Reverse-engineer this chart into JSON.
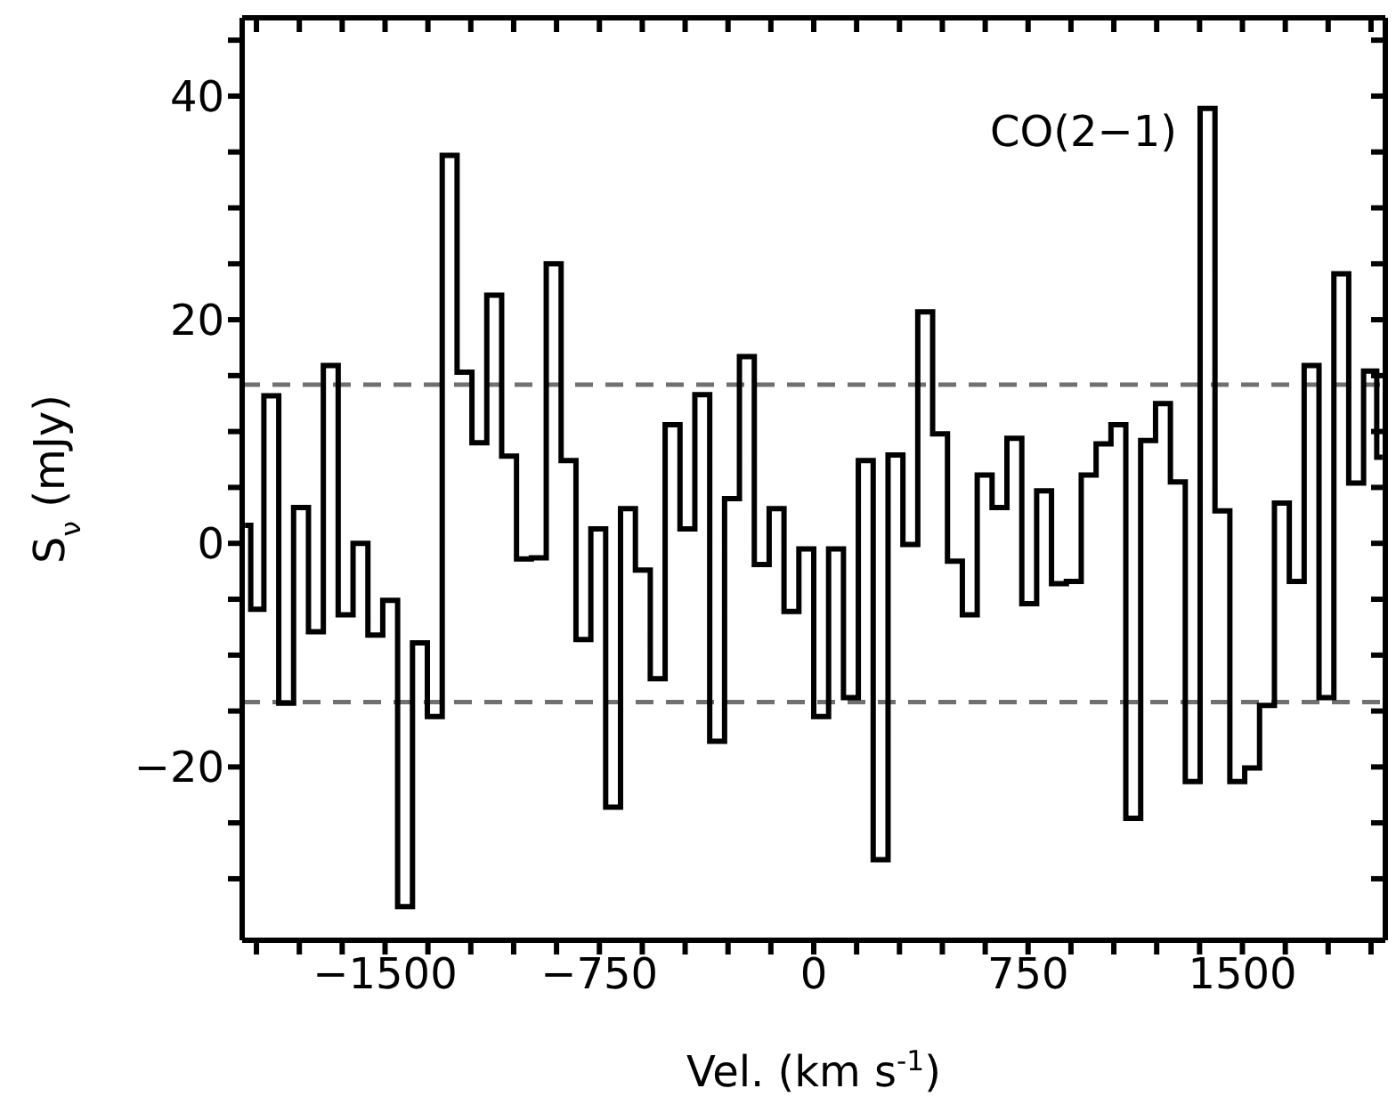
{
  "chart_data": {
    "type": "step",
    "xlabel": "Vel. (km s$^{-1}$)",
    "ylabel": "S$_{ν}$ (mJy)",
    "annotations": [
      "CO(2−1)"
    ],
    "x": [
      -1990,
      -1950,
      -1898,
      -1846,
      -1794,
      -1742,
      -1690,
      -1638,
      -1586,
      -1534,
      -1482,
      -1430,
      -1378,
      -1326,
      -1274,
      -1222,
      -1170,
      -1118,
      -1066,
      -1014,
      -962,
      -910,
      -858,
      -806,
      -754,
      -702,
      -650,
      -598,
      -546,
      -494,
      -442,
      -390,
      -338,
      -286,
      -234,
      -182,
      -130,
      -78,
      -26,
      26,
      78,
      130,
      182,
      234,
      286,
      338,
      390,
      442,
      494,
      546,
      598,
      650,
      702,
      754,
      806,
      858,
      910,
      962,
      1014,
      1066,
      1118,
      1170,
      1222,
      1274,
      1326,
      1378,
      1430,
      1482,
      1534,
      1586,
      1638,
      1690,
      1742,
      1794,
      1846,
      1898,
      1950,
      1990
    ],
    "series": [
      {
        "color": "#000000",
        "values": [
          1.6,
          -5.9,
          13.2,
          -14.3,
          3.2,
          -7.9,
          15.9,
          -6.4,
          0,
          -8.2,
          -5.1,
          -32.5,
          -8.9,
          -15.5,
          34.7,
          15.3,
          9.0,
          22.2,
          7.8,
          -1.4,
          -1.3,
          25.0,
          7.4,
          -8.6,
          1.3,
          -23.6,
          3.1,
          -2.4,
          -12.1,
          10.6,
          1.3,
          13.3,
          -17.7,
          4.0,
          16.7,
          -1.9,
          3.1,
          -6.1,
          -0.5,
          -15.5,
          -0.5,
          -13.8,
          7.4,
          -28.3,
          7.9,
          -0.1,
          20.7,
          9.8,
          -1.6,
          -6.4,
          6.1,
          3.2,
          9.4,
          -5.4,
          4.7,
          -3.6,
          -3.4,
          6.1,
          8.9,
          10.6,
          -24.6,
          9.2,
          12.5,
          5.5,
          -21.3,
          38.9,
          2.9,
          -21.3,
          -20.1,
          -14.5,
          3.6,
          -3.4,
          15.9,
          -13.8,
          24.1,
          5.4,
          15.4,
          7.7
        ]
      }
    ],
    "xlim": [
      -2000,
      2000
    ],
    "xticks": [
      {
        "value": -1950,
        "label": null
      },
      {
        "value": -1800,
        "label": null
      },
      {
        "value": -1650,
        "label": null
      },
      -1500,
      {
        "value": -1350,
        "label": null
      },
      {
        "value": -1200,
        "label": null
      },
      {
        "value": -1050,
        "label": null
      },
      {
        "value": -900,
        "label": null
      },
      -750,
      {
        "value": -600,
        "label": null
      },
      {
        "value": -450,
        "label": null
      },
      {
        "value": -300,
        "label": null
      },
      {
        "value": -150,
        "label": null
      },
      0,
      {
        "value": 150,
        "label": null
      },
      {
        "value": 300,
        "label": null
      },
      {
        "value": 450,
        "label": null
      },
      {
        "value": 600,
        "label": null
      },
      750,
      {
        "value": 900,
        "label": null
      },
      {
        "value": 1050,
        "label": null
      },
      {
        "value": 1200,
        "label": null
      },
      {
        "value": 1350,
        "label": null
      },
      1500,
      {
        "value": 1650,
        "label": null
      },
      {
        "value": 1800,
        "label": null
      },
      {
        "value": 1950,
        "label": null
      }
    ],
    "ylim": [
      -35.5,
      47
    ],
    "yticks": [
      {
        "value": -30,
        "label": null
      },
      {
        "value": -25,
        "label": null
      },
      -20,
      {
        "value": -15,
        "label": null
      },
      {
        "value": -10,
        "label": null
      },
      {
        "value": -5,
        "label": null
      },
      0,
      {
        "value": 5,
        "label": null
      },
      {
        "value": 10,
        "label": null
      },
      {
        "value": 15,
        "label": null
      },
      20,
      {
        "value": 25,
        "label": null
      },
      {
        "value": 30,
        "label": null
      },
      {
        "value": 35,
        "label": null
      },
      40,
      {
        "value": 45,
        "label": null
      }
    ],
    "ref_lines": [
      {
        "axis": "y",
        "value": 14.2,
        "color": "#707070",
        "line_style": "dashed"
      },
      {
        "axis": "y",
        "value": -14.2,
        "color": "#707070",
        "line_style": "dashed"
      }
    ],
    "grid": false,
    "legend": false,
    "line_style": "solid"
  }
}
